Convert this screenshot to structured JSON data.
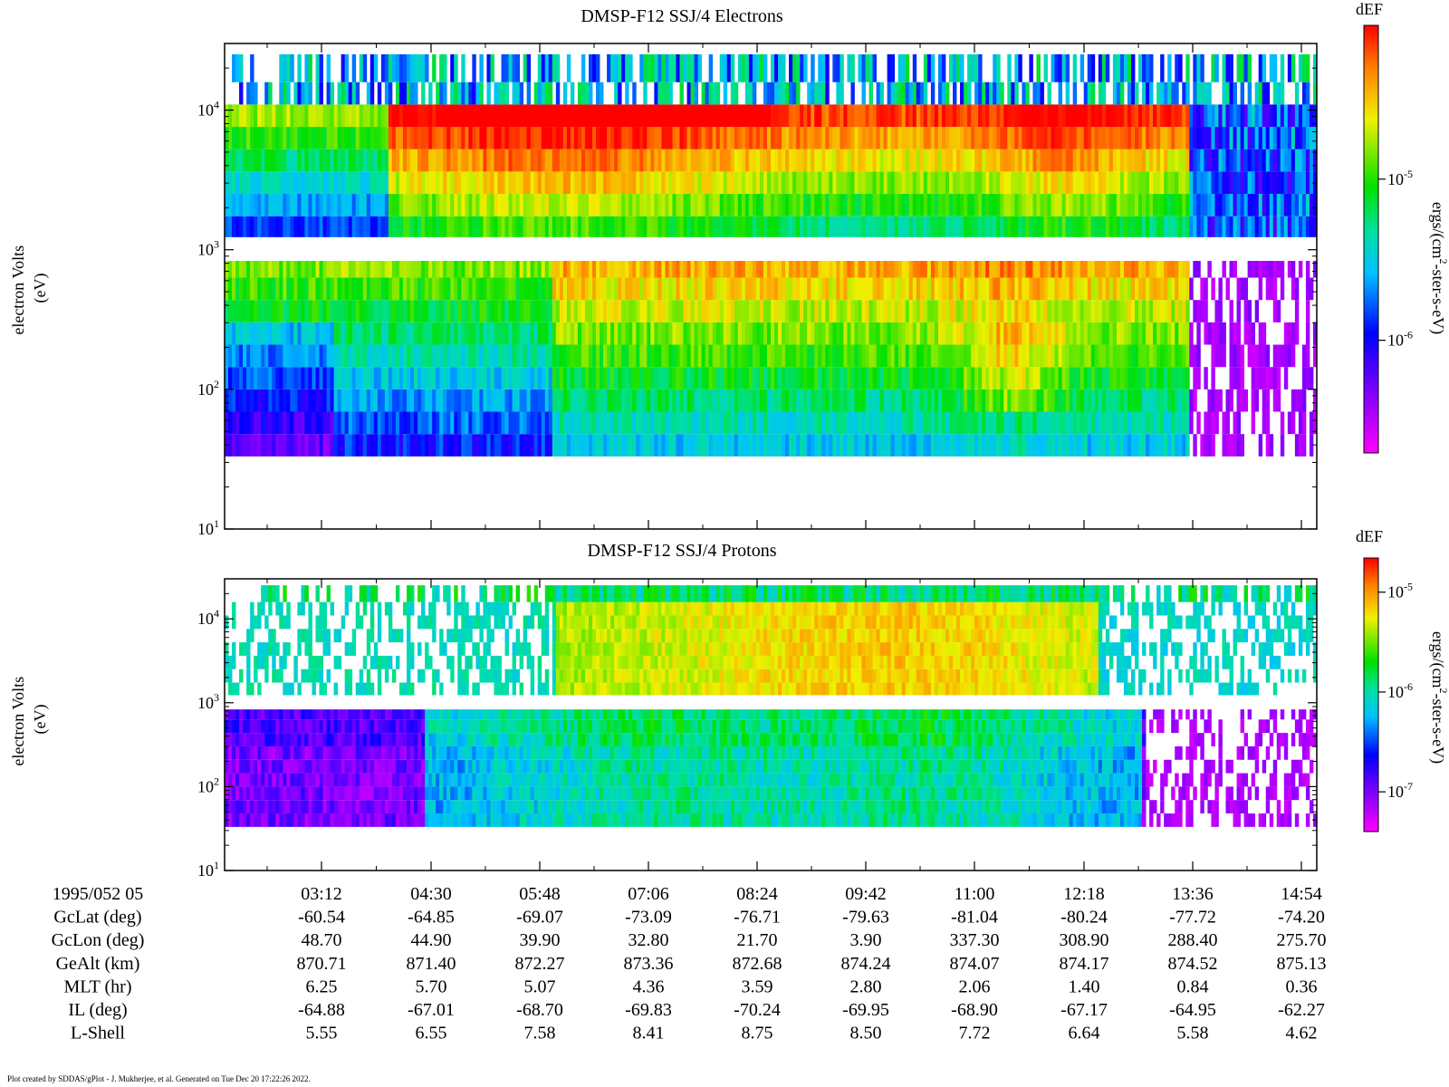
{
  "chart_data": [
    {
      "type": "heatmap",
      "title": "DMSP-F12 SSJ/4 Electrons",
      "ylabel_line1": "electron Volts",
      "ylabel_line2": "(eV)",
      "y_scale": "log",
      "ylim": [
        10,
        30000
      ],
      "y_ticks": [
        {
          "base": "10",
          "exp": "1",
          "value": 10
        },
        {
          "base": "10",
          "exp": "2",
          "value": 100
        },
        {
          "base": "10",
          "exp": "3",
          "value": 1000
        },
        {
          "base": "10",
          "exp": "4",
          "value": 10000
        }
      ],
      "colorbar": {
        "title": "dEF",
        "label_pre": "ergs/(cm",
        "label_sup": "2",
        "label_post": "-ster-s-eV)",
        "scale": "log",
        "ticks": [
          {
            "base": "10",
            "exp": "-6",
            "value": 1e-06
          },
          {
            "base": "10",
            "exp": "-5",
            "value": 1e-05
          }
        ]
      }
    },
    {
      "type": "heatmap",
      "title": "DMSP-F12 SSJ/4 Protons",
      "ylabel_line1": "electron Volts",
      "ylabel_line2": "(eV)",
      "y_scale": "log",
      "ylim": [
        10,
        30000
      ],
      "y_ticks": [
        {
          "base": "10",
          "exp": "1",
          "value": 10
        },
        {
          "base": "10",
          "exp": "2",
          "value": 100
        },
        {
          "base": "10",
          "exp": "3",
          "value": 1000
        },
        {
          "base": "10",
          "exp": "4",
          "value": 10000
        }
      ],
      "colorbar": {
        "title": "dEF",
        "label_pre": "ergs/(cm",
        "label_sup": "2",
        "label_post": "-ster-s-eV)",
        "scale": "log",
        "ticks": [
          {
            "base": "10",
            "exp": "-7",
            "value": 1e-07
          },
          {
            "base": "10",
            "exp": "-6",
            "value": 1e-06
          },
          {
            "base": "10",
            "exp": "-5",
            "value": 1e-05
          }
        ]
      }
    }
  ],
  "time_axis": {
    "date_label": "1995/052 05",
    "ticks": [
      "03:12",
      "04:30",
      "05:48",
      "07:06",
      "08:24",
      "09:42",
      "11:00",
      "12:18",
      "13:36",
      "14:54"
    ]
  },
  "ephemeris": [
    {
      "label": "GcLat (deg)",
      "values": [
        "-60.54",
        "-64.85",
        "-69.07",
        "-73.09",
        "-76.71",
        "-79.63",
        "-81.04",
        "-80.24",
        "-77.72",
        "-74.20"
      ]
    },
    {
      "label": "GcLon (deg)",
      "values": [
        "48.70",
        "44.90",
        "39.90",
        "32.80",
        "21.70",
        "3.90",
        "337.30",
        "308.90",
        "288.40",
        "275.70"
      ]
    },
    {
      "label": "GeAlt (km)",
      "values": [
        "870.71",
        "871.40",
        "872.27",
        "873.36",
        "872.68",
        "874.24",
        "874.07",
        "874.17",
        "874.52",
        "875.13"
      ]
    },
    {
      "label": "MLT (hr)",
      "values": [
        "6.25",
        "5.70",
        "5.07",
        "4.36",
        "3.59",
        "2.80",
        "2.06",
        "1.40",
        "0.84",
        "0.36"
      ]
    },
    {
      "label": "IL (deg)",
      "values": [
        "-64.88",
        "-67.01",
        "-68.70",
        "-69.83",
        "-70.24",
        "-69.95",
        "-68.90",
        "-67.17",
        "-64.95",
        "-62.27"
      ]
    },
    {
      "label": "L-Shell",
      "values": [
        "5.55",
        "6.55",
        "7.58",
        "8.41",
        "8.75",
        "8.50",
        "7.72",
        "6.64",
        "5.58",
        "4.62"
      ]
    }
  ],
  "footer": "Plot created by SDDAS/gPlot - J. Mukherjee, et al.  Generated on Tue Dec 20 17:22:26 2022."
}
